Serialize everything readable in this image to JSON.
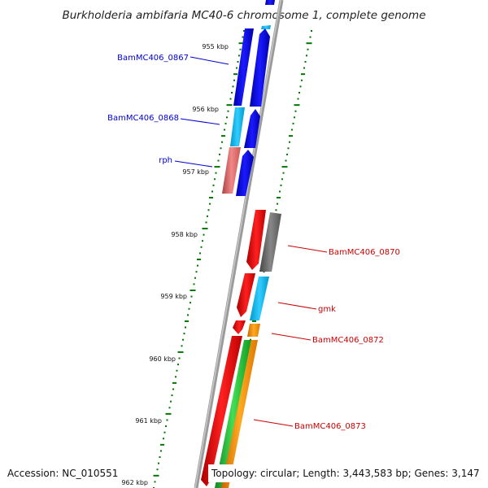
{
  "title": "Burkholderia ambifaria MC40-6 chromosome 1, complete genome",
  "footer": {
    "accession": "Accession: NC_010551",
    "summary": "Topology: circular; Length: 3,443,583 bp; Genes: 3,147"
  },
  "ticks": [
    "955 kbp",
    "956 kbp",
    "957 kbp",
    "958 kbp",
    "959 kbp",
    "960 kbp",
    "961 kbp",
    "962 kbp"
  ],
  "genes": [
    {
      "label": "BamMC406_0867",
      "label_color": "#0000cc",
      "strand": "forward",
      "colors": [
        "#0000ee",
        "#0000ee"
      ]
    },
    {
      "label": "BamMC406_0868",
      "label_color": "#0000cc",
      "strand": "forward",
      "colors": [
        "#11bbee",
        "#0000ee"
      ]
    },
    {
      "label": "rph",
      "label_color": "#0000cc",
      "strand": "forward",
      "colors": [
        "#ee7777",
        "#0000ee"
      ]
    },
    {
      "label": "BamMC406_0870",
      "label_color": "#cc0000",
      "strand": "reverse",
      "colors": [
        "#ee0000",
        "#777777"
      ]
    },
    {
      "label": "gmk",
      "label_color": "#cc0000",
      "strand": "reverse",
      "colors": [
        "#ee0000",
        "#11bbee"
      ]
    },
    {
      "label": "BamMC406_0872",
      "label_color": "#cc0000",
      "strand": "reverse",
      "colors": [
        "#ee0000",
        "#ff8800"
      ]
    },
    {
      "label": "BamMC406_0873",
      "label_color": "#cc0000",
      "strand": "reverse",
      "colors": [
        "#ee0000",
        "#22bb44",
        "#ff8800"
      ]
    }
  ],
  "colors": {
    "backbone": "#888888",
    "tick": "#007700",
    "forward_label": "#0000cc",
    "reverse_label": "#cc0000"
  }
}
